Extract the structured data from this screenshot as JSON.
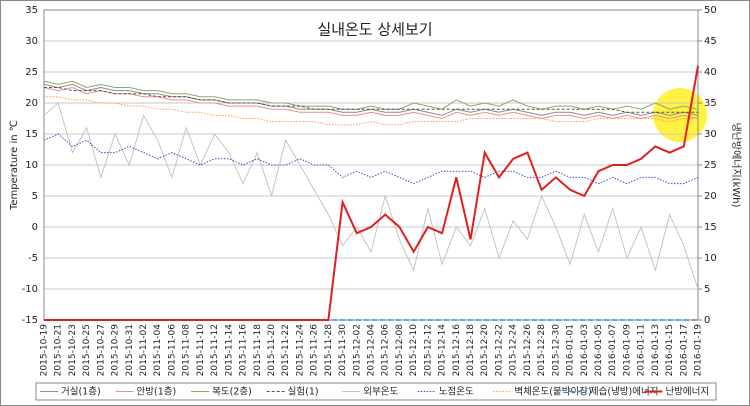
{
  "chart_data": {
    "type": "line",
    "title": "실내온도 상세보기",
    "y_label": "Temperature in ℃",
    "y2_label": "냉난방에너지(kWh)",
    "categories": [
      "2015-10-19",
      "2015-10-21",
      "2015-10-23",
      "2015-10-25",
      "2015-10-27",
      "2015-10-29",
      "2015-10-31",
      "2015-11-02",
      "2015-11-04",
      "2015-11-06",
      "2015-11-08",
      "2015-11-10",
      "2015-11-12",
      "2015-11-14",
      "2015-11-16",
      "2015-11-18",
      "2015-11-20",
      "2015-11-22",
      "2015-11-24",
      "2015-11-26",
      "2015-11-28",
      "2015-11-30",
      "2015-12-02",
      "2015-12-04",
      "2015-12-06",
      "2015-12-08",
      "2015-12-10",
      "2015-12-12",
      "2015-12-14",
      "2015-12-16",
      "2015-12-18",
      "2015-12-20",
      "2015-12-22",
      "2015-12-24",
      "2015-12-26",
      "2015-12-28",
      "2015-12-30",
      "2016-01-01",
      "2016-01-03",
      "2016-01-05",
      "2016-01-07",
      "2016-01-09",
      "2016-01-11",
      "2016-01-13",
      "2016-01-15",
      "2016-01-17",
      "2016-01-19"
    ],
    "ylim": [
      -15,
      35
    ],
    "yticks": [
      -15,
      -10,
      -5,
      0,
      5,
      10,
      15,
      20,
      25,
      30,
      35
    ],
    "y2lim": [
      0,
      50
    ],
    "y2ticks": [
      0,
      5,
      10,
      15,
      20,
      25,
      30,
      35,
      40,
      45,
      50
    ],
    "grid": true,
    "series": [
      {
        "name": "거실(1층)",
        "color": "#8c8c8c",
        "dash": "",
        "width": 1,
        "values": [
          23,
          22.5,
          23,
          22,
          22.5,
          22,
          22,
          21.5,
          21.5,
          21,
          21,
          20.5,
          20.5,
          20,
          20,
          20,
          19.5,
          19.5,
          19,
          19,
          19,
          18.5,
          18.5,
          19,
          18.5,
          18.5,
          19,
          18.5,
          18,
          19,
          18.5,
          19,
          18.5,
          19,
          18.5,
          18,
          18.5,
          18.5,
          18,
          18.5,
          18,
          18.5,
          18,
          18.5,
          18,
          18.5,
          18
        ]
      },
      {
        "name": "안방(1층)",
        "color": "#e8908a",
        "dash": "",
        "width": 1,
        "values": [
          22.5,
          22,
          22.5,
          21.5,
          22,
          21.5,
          21.5,
          21,
          21,
          20.5,
          20.5,
          20,
          20,
          19.5,
          19.5,
          19.5,
          19,
          19,
          18.5,
          18.5,
          18.5,
          18,
          18,
          18.5,
          18,
          18,
          18.5,
          18,
          17.5,
          18.5,
          18,
          18.5,
          18,
          18.5,
          18,
          17.5,
          18,
          18,
          17.5,
          18,
          17.5,
          18,
          17.5,
          18,
          17.5,
          18,
          17.5
        ]
      },
      {
        "name": "복도(2층)",
        "color": "#8ea86a",
        "dash": "",
        "width": 1,
        "values": [
          23.5,
          23,
          23.5,
          22.5,
          23,
          22.5,
          22.5,
          22,
          22,
          21.5,
          21.5,
          21,
          21,
          20.5,
          20.5,
          20.5,
          20,
          20,
          19.5,
          19.5,
          19.5,
          19,
          19,
          19.5,
          19,
          19,
          20,
          19.5,
          19,
          20.5,
          19.5,
          20,
          19.5,
          20.5,
          19.5,
          19,
          19.5,
          19.5,
          19,
          19.5,
          19,
          19.5,
          19,
          20,
          19,
          19.5,
          19
        ]
      },
      {
        "name": "실험(1)",
        "color": "#555555",
        "dash": "3,2",
        "width": 1,
        "values": [
          22.5,
          22.5,
          22,
          22,
          22,
          21.5,
          21.5,
          21.5,
          21,
          21,
          21,
          20.5,
          20.5,
          20,
          20,
          20,
          19.5,
          19.5,
          19.5,
          19,
          19,
          19,
          19,
          19,
          19,
          19,
          19,
          19,
          19,
          19,
          19,
          19,
          19,
          19,
          19,
          19,
          19,
          19,
          19,
          19,
          19,
          18.5,
          18.5,
          18.5,
          18.5,
          18.5,
          18.5
        ]
      },
      {
        "name": "외부온도",
        "color": "#c4c4c4",
        "dash": "",
        "width": 1,
        "values": [
          18,
          20,
          12,
          16,
          8,
          15,
          10,
          18,
          14,
          8,
          16,
          10,
          15,
          12,
          7,
          12,
          5,
          14,
          10,
          6,
          2,
          -3,
          0,
          -4,
          5,
          -2,
          -7,
          3,
          -6,
          0,
          -3,
          3,
          -5,
          1,
          -2,
          5,
          0,
          -6,
          2,
          -4,
          3,
          -5,
          0,
          -7,
          2,
          -3,
          -10
        ]
      },
      {
        "name": "노점온도",
        "color": "#3b4fc4",
        "dash": "1.5,1.5",
        "width": 1,
        "values": [
          14,
          15,
          13,
          14,
          12,
          12,
          13,
          12,
          11,
          12,
          11,
          10,
          11,
          11,
          10,
          11,
          10,
          10,
          11,
          10,
          10,
          8,
          9,
          8,
          9,
          8,
          7,
          8,
          9,
          9,
          9,
          8,
          9,
          9,
          8,
          8,
          9,
          8,
          8,
          7,
          8,
          7,
          8,
          8,
          7,
          7,
          8
        ]
      },
      {
        "name": "벽체온도(붙박이장)",
        "color": "#f0a050",
        "dash": "1.5,1.5",
        "width": 1,
        "values": [
          21,
          21,
          20.5,
          20.5,
          20,
          20,
          19.5,
          19.5,
          19,
          19,
          18.5,
          18.5,
          18,
          18,
          17.5,
          17.5,
          17,
          17,
          17,
          17,
          16.5,
          16.5,
          16.5,
          17,
          16.5,
          16.5,
          17,
          17,
          17,
          17,
          17.5,
          17.5,
          17.5,
          17.5,
          17.5,
          17.5,
          17,
          17,
          17,
          17.5,
          17.5,
          17.5,
          17.5,
          17.5,
          17,
          17.5,
          17.5
        ]
      },
      {
        "name": "제습(냉방)에너지",
        "color": "#3a8fd0",
        "dash": "5,3",
        "width": 1.5,
        "axis": "y2",
        "values": [
          0,
          0,
          0,
          0,
          0,
          0,
          0,
          0,
          0,
          0,
          0,
          0,
          0,
          0,
          0,
          0,
          0,
          0,
          0,
          0,
          0,
          0,
          0,
          0,
          0,
          0,
          0,
          0,
          0,
          0,
          0,
          0,
          0,
          0,
          0,
          0,
          0,
          0,
          0,
          0,
          0,
          0,
          0,
          0,
          0,
          0,
          0
        ]
      },
      {
        "name": "난방에너지",
        "color": "#e02020",
        "dash": "",
        "width": 2,
        "axis": "y2",
        "values": [
          0,
          0,
          0,
          0,
          0,
          0,
          0,
          0,
          0,
          0,
          0,
          0,
          0,
          0,
          0,
          0,
          0,
          0,
          0,
          0,
          0,
          19,
          14,
          15,
          17,
          15,
          11,
          15,
          14,
          23,
          13,
          27,
          23,
          26,
          27,
          21,
          23,
          21,
          20,
          24,
          25,
          25,
          26,
          28,
          27,
          28,
          41
        ]
      }
    ]
  }
}
